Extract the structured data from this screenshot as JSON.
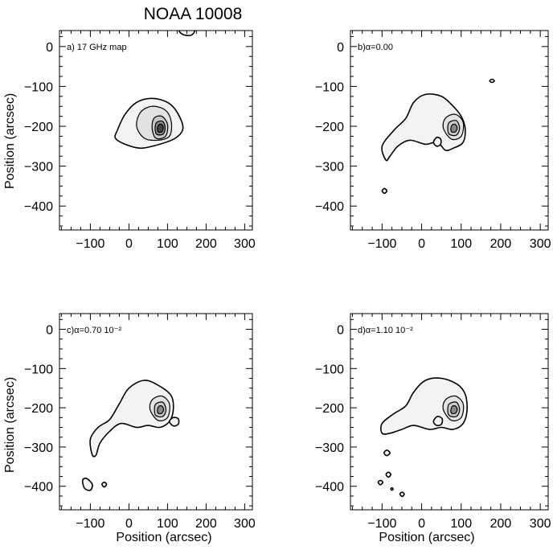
{
  "figure": {
    "title": "NOAA 10008",
    "ylabel": "Position (arcsec)",
    "xlabel": "Position (arcsec)"
  },
  "colors": {
    "ink": "#000000",
    "background": "#ffffff",
    "map_fill": "#f3f3f3"
  },
  "chart_data": [
    {
      "type": "contour",
      "panel_label": "a) 17 GHz map",
      "xlim": [
        -180,
        320
      ],
      "ylim": [
        -460,
        40
      ],
      "xticks": [
        -100,
        0,
        100,
        200,
        300
      ],
      "yticks": [
        0,
        -100,
        -200,
        -300,
        -400
      ],
      "peak": [
        80,
        -205
      ],
      "contours": [
        {
          "level": 1,
          "points": [
            [
              -30,
              -210
            ],
            [
              -10,
              -170
            ],
            [
              20,
              -140
            ],
            [
              60,
              -130
            ],
            [
              100,
              -140
            ],
            [
              125,
              -165
            ],
            [
              140,
              -205
            ],
            [
              120,
              -230
            ],
            [
              80,
              -245
            ],
            [
              30,
              -255
            ],
            [
              -10,
              -245
            ],
            [
              -35,
              -230
            ]
          ]
        },
        {
          "level": 2,
          "points": [
            [
              20,
              -200
            ],
            [
              30,
              -165
            ],
            [
              60,
              -150
            ],
            [
              95,
              -160
            ],
            [
              110,
              -190
            ],
            [
              105,
              -225
            ],
            [
              75,
              -235
            ],
            [
              40,
              -230
            ]
          ]
        },
        {
          "level": 3,
          "points": [
            [
              60,
              -205
            ],
            [
              65,
              -180
            ],
            [
              85,
              -175
            ],
            [
              100,
              -195
            ],
            [
              95,
              -225
            ],
            [
              70,
              -230
            ]
          ]
        },
        {
          "level": 4,
          "points": [
            [
              68,
              -205
            ],
            [
              72,
              -190
            ],
            [
              88,
              -188
            ],
            [
              94,
              -205
            ],
            [
              88,
              -220
            ],
            [
              72,
              -220
            ]
          ]
        },
        {
          "level": 5,
          "points": [
            [
              74,
              -205
            ],
            [
              78,
              -196
            ],
            [
              86,
              -196
            ],
            [
              89,
              -205
            ],
            [
              85,
              -214
            ],
            [
              76,
              -214
            ]
          ]
        },
        {
          "level": 1,
          "points": [
            [
              130,
              40
            ],
            [
              140,
              30
            ],
            [
              160,
              28
            ],
            [
              170,
              38
            ],
            [
              160,
              45
            ],
            [
              140,
              45
            ]
          ]
        }
      ]
    },
    {
      "type": "contour",
      "panel_label": "b)α=0.00",
      "xlim": [
        -180,
        320
      ],
      "ylim": [
        -460,
        40
      ],
      "xticks": [
        -100,
        0,
        100,
        200,
        300
      ],
      "yticks": [
        0,
        -100,
        -200,
        -300,
        -400
      ],
      "peak": [
        80,
        -205
      ],
      "contours": [
        {
          "level": 1,
          "points": [
            [
              -90,
              -285
            ],
            [
              -100,
              -250
            ],
            [
              -70,
              -210
            ],
            [
              -40,
              -180
            ],
            [
              -20,
              -140
            ],
            [
              10,
              -120
            ],
            [
              50,
              -125
            ],
            [
              80,
              -150
            ],
            [
              100,
              -175
            ],
            [
              110,
              -205
            ],
            [
              105,
              -240
            ],
            [
              80,
              -255
            ],
            [
              60,
              -260
            ],
            [
              40,
              -240
            ],
            [
              10,
              -245
            ],
            [
              -30,
              -235
            ],
            [
              -60,
              -250
            ],
            [
              -80,
              -275
            ]
          ]
        },
        {
          "level": 2,
          "points": [
            [
              55,
              -205
            ],
            [
              60,
              -180
            ],
            [
              85,
              -170
            ],
            [
              105,
              -190
            ],
            [
              100,
              -225
            ],
            [
              75,
              -232
            ]
          ]
        },
        {
          "level": 3,
          "points": [
            [
              66,
              -205
            ],
            [
              70,
              -190
            ],
            [
              88,
              -186
            ],
            [
              96,
              -205
            ],
            [
              88,
              -222
            ],
            [
              70,
              -220
            ]
          ]
        },
        {
          "level": 4,
          "points": [
            [
              74,
              -205
            ],
            [
              78,
              -196
            ],
            [
              86,
              -196
            ],
            [
              90,
              -205
            ],
            [
              85,
              -214
            ],
            [
              76,
              -214
            ]
          ]
        },
        {
          "level": 1,
          "points": [
            [
              30,
              -240
            ],
            [
              38,
              -228
            ],
            [
              48,
              -232
            ],
            [
              48,
              -245
            ],
            [
              38,
              -250
            ]
          ]
        },
        {
          "level": 1,
          "points": [
            [
              -100,
              -362
            ],
            [
              -94,
              -356
            ],
            [
              -88,
              -362
            ],
            [
              -94,
              -368
            ]
          ]
        },
        {
          "level": 1,
          "points": [
            [
              172,
              -86
            ],
            [
              178,
              -82
            ],
            [
              184,
              -86
            ],
            [
              178,
              -90
            ]
          ]
        }
      ]
    },
    {
      "type": "contour",
      "panel_label": "c)α=0.70 10⁻²",
      "xlim": [
        -180,
        320
      ],
      "ylim": [
        -460,
        40
      ],
      "xticks": [
        -100,
        0,
        100,
        200,
        300
      ],
      "yticks": [
        0,
        -100,
        -200,
        -300,
        -400
      ],
      "peak": [
        80,
        -205
      ],
      "contours": [
        {
          "level": 1,
          "points": [
            [
              -95,
              -320
            ],
            [
              -100,
              -280
            ],
            [
              -80,
              -250
            ],
            [
              -50,
              -230
            ],
            [
              -25,
              -190
            ],
            [
              0,
              -150
            ],
            [
              40,
              -130
            ],
            [
              80,
              -145
            ],
            [
              110,
              -170
            ],
            [
              115,
              -205
            ],
            [
              105,
              -235
            ],
            [
              80,
              -250
            ],
            [
              50,
              -245
            ],
            [
              20,
              -250
            ],
            [
              -20,
              -240
            ],
            [
              -50,
              -260
            ],
            [
              -75,
              -290
            ],
            [
              -85,
              -320
            ]
          ]
        },
        {
          "level": 2,
          "points": [
            [
              55,
              -205
            ],
            [
              60,
              -180
            ],
            [
              85,
              -170
            ],
            [
              105,
              -190
            ],
            [
              100,
              -225
            ],
            [
              75,
              -232
            ]
          ]
        },
        {
          "level": 3,
          "points": [
            [
              66,
              -205
            ],
            [
              70,
              -190
            ],
            [
              88,
              -186
            ],
            [
              96,
              -205
            ],
            [
              88,
              -222
            ],
            [
              70,
              -220
            ]
          ]
        },
        {
          "level": 4,
          "points": [
            [
              74,
              -205
            ],
            [
              78,
              -196
            ],
            [
              86,
              -196
            ],
            [
              90,
              -205
            ],
            [
              85,
              -214
            ],
            [
              76,
              -214
            ]
          ]
        },
        {
          "level": 1,
          "points": [
            [
              105,
              -235
            ],
            [
              115,
              -225
            ],
            [
              128,
              -228
            ],
            [
              128,
              -242
            ],
            [
              115,
              -246
            ]
          ]
        },
        {
          "level": 1,
          "points": [
            [
              -120,
              -385
            ],
            [
              -110,
              -380
            ],
            [
              -95,
              -395
            ],
            [
              -100,
              -410
            ],
            [
              -115,
              -405
            ]
          ]
        },
        {
          "level": 1,
          "points": [
            [
              -70,
              -395
            ],
            [
              -64,
              -390
            ],
            [
              -58,
              -395
            ],
            [
              -64,
              -402
            ]
          ]
        }
      ]
    },
    {
      "type": "contour",
      "panel_label": "d)α=1.10 10⁻²",
      "xlim": [
        -180,
        320
      ],
      "ylim": [
        -460,
        40
      ],
      "xticks": [
        -100,
        0,
        100,
        200,
        300
      ],
      "yticks": [
        0,
        -100,
        -200,
        -300,
        -400
      ],
      "peak": [
        80,
        -205
      ],
      "contours": [
        {
          "level": 1,
          "points": [
            [
              -100,
              -265
            ],
            [
              -100,
              -240
            ],
            [
              -70,
              -215
            ],
            [
              -40,
              -195
            ],
            [
              -20,
              -160
            ],
            [
              10,
              -130
            ],
            [
              50,
              -125
            ],
            [
              90,
              -140
            ],
            [
              110,
              -165
            ],
            [
              115,
              -205
            ],
            [
              105,
              -240
            ],
            [
              80,
              -255
            ],
            [
              50,
              -250
            ],
            [
              20,
              -255
            ],
            [
              -20,
              -245
            ],
            [
              -50,
              -255
            ],
            [
              -80,
              -265
            ]
          ]
        },
        {
          "level": 2,
          "points": [
            [
              55,
              -205
            ],
            [
              60,
              -180
            ],
            [
              85,
              -170
            ],
            [
              105,
              -190
            ],
            [
              100,
              -225
            ],
            [
              75,
              -232
            ]
          ]
        },
        {
          "level": 3,
          "points": [
            [
              66,
              -205
            ],
            [
              70,
              -190
            ],
            [
              88,
              -186
            ],
            [
              96,
              -205
            ],
            [
              88,
              -222
            ],
            [
              70,
              -220
            ]
          ]
        },
        {
          "level": 4,
          "points": [
            [
              74,
              -205
            ],
            [
              78,
              -196
            ],
            [
              86,
              -196
            ],
            [
              90,
              -205
            ],
            [
              85,
              -214
            ],
            [
              76,
              -214
            ]
          ]
        },
        {
          "level": 1,
          "points": [
            [
              30,
              -235
            ],
            [
              40,
              -222
            ],
            [
              52,
              -228
            ],
            [
              50,
              -242
            ],
            [
              38,
              -245
            ]
          ]
        },
        {
          "level": 1,
          "points": [
            [
              -95,
              -315
            ],
            [
              -88,
              -308
            ],
            [
              -80,
              -315
            ],
            [
              -88,
              -322
            ]
          ]
        },
        {
          "level": 1,
          "points": [
            [
              -90,
              -370
            ],
            [
              -84,
              -364
            ],
            [
              -78,
              -370
            ],
            [
              -84,
              -377
            ]
          ]
        },
        {
          "level": 1,
          "points": [
            [
              -110,
              -390
            ],
            [
              -104,
              -385
            ],
            [
              -98,
              -390
            ],
            [
              -104,
              -396
            ]
          ]
        },
        {
          "level": 1,
          "points": [
            [
              -55,
              -420
            ],
            [
              -49,
              -415
            ],
            [
              -44,
              -420
            ],
            [
              -49,
              -426
            ]
          ]
        },
        {
          "level": 1,
          "points": [
            [
              -78,
              -407
            ],
            [
              -75,
              -404
            ],
            [
              -72,
              -407
            ],
            [
              -75,
              -410
            ]
          ]
        }
      ]
    }
  ]
}
